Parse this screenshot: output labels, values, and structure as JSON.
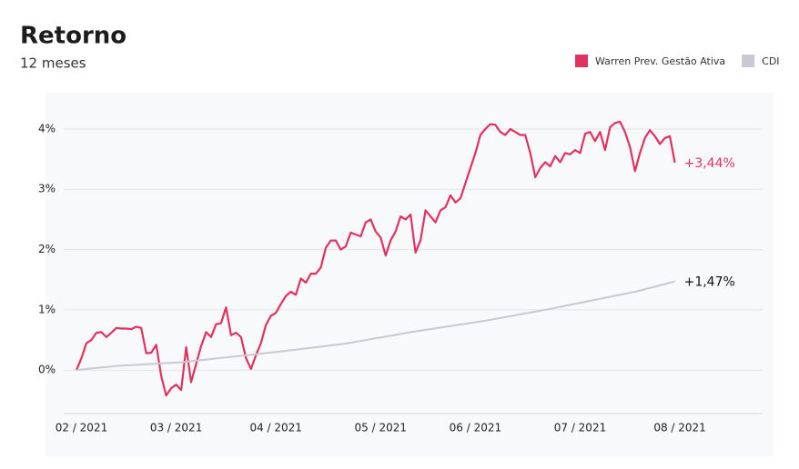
{
  "chart_data": {
    "type": "line",
    "title": "Retorno",
    "subtitle": "12 meses",
    "categories": [
      null,
      "02 / 2021",
      null,
      null,
      null,
      null,
      null,
      null,
      null,
      null,
      null,
      null,
      null,
      null,
      null,
      null,
      null,
      null,
      null,
      null,
      "03 / 2021",
      null,
      null,
      null,
      null,
      null,
      null,
      null,
      null,
      null,
      null,
      null,
      null,
      null,
      null,
      null,
      null,
      null,
      null,
      null,
      "04 / 2021",
      null,
      null,
      null,
      null,
      null,
      null,
      null,
      null,
      null,
      null,
      null,
      null,
      null,
      null,
      null,
      null,
      null,
      null,
      null,
      null,
      "05 / 2021",
      null,
      null,
      null,
      null,
      null,
      null,
      null,
      null,
      null,
      null,
      null,
      null,
      null,
      null,
      null,
      null,
      null,
      null,
      "06 / 2021",
      null,
      null,
      null,
      null,
      null,
      null,
      null,
      null,
      null,
      null,
      null,
      null,
      null,
      null,
      null,
      null,
      null,
      null,
      null,
      null,
      "07 / 2021",
      null,
      null,
      null,
      null,
      null,
      null,
      null,
      null,
      null,
      null,
      null,
      null,
      null,
      null,
      null,
      null,
      null,
      null,
      null,
      "08 / 2021"
    ],
    "series": [
      {
        "name": "Warren Prev. Gestão Ativa",
        "color": "#e0325f",
        "end_label": "+3,44%",
        "values": [
          0,
          0.2,
          0.45,
          0.5,
          0.62,
          0.63,
          0.55,
          0.62,
          0.7,
          0.69,
          0.69,
          0.68,
          0.72,
          0.7,
          0.28,
          0.29,
          0.42,
          -0.1,
          -0.42,
          -0.3,
          -0.24,
          -0.33,
          0.38,
          -0.2,
          0.1,
          0.4,
          0.63,
          0.55,
          0.76,
          0.78,
          1.04,
          0.58,
          0.62,
          0.55,
          0.2,
          0.02,
          0.25,
          0.45,
          0.75,
          0.9,
          0.95,
          1.1,
          1.23,
          1.3,
          1.25,
          1.52,
          1.45,
          1.6,
          1.6,
          1.7,
          2.03,
          2.15,
          2.15,
          2.0,
          2.05,
          2.28,
          2.25,
          2.22,
          2.45,
          2.5,
          2.3,
          2.2,
          1.9,
          2.15,
          2.3,
          2.55,
          2.5,
          2.58,
          1.95,
          2.15,
          2.65,
          2.55,
          2.45,
          2.65,
          2.7,
          2.9,
          2.78,
          2.85,
          3.1,
          3.35,
          3.6,
          3.9,
          4.0,
          4.08,
          4.07,
          3.95,
          3.9,
          4.0,
          3.95,
          3.9,
          3.9,
          3.6,
          3.2,
          3.35,
          3.45,
          3.38,
          3.55,
          3.45,
          3.6,
          3.58,
          3.65,
          3.6,
          3.92,
          3.95,
          3.8,
          3.95,
          3.65,
          4.03,
          4.1,
          4.12,
          3.95,
          3.7,
          3.3,
          3.6,
          3.85,
          3.98,
          3.88,
          3.75,
          3.85,
          3.88,
          3.44,
          null
        ]
      },
      {
        "name": "CDI",
        "color": "#c9c8d3",
        "end_label": "+1,47%",
        "values": [
          0,
          0.01,
          0.02,
          0.03,
          0.035,
          0.045,
          0.05,
          0.06,
          0.07,
          0.075,
          0.08,
          0.084,
          0.088,
          0.093,
          0.098,
          0.102,
          0.107,
          0.112,
          0.116,
          0.121,
          0.125,
          0.13,
          0.139,
          0.148,
          0.157,
          0.166,
          0.175,
          0.184,
          0.193,
          0.202,
          0.211,
          0.22,
          0.229,
          0.238,
          0.246,
          0.255,
          0.264,
          0.273,
          0.282,
          0.291,
          0.3,
          0.31,
          0.32,
          0.33,
          0.34,
          0.35,
          0.36,
          0.37,
          0.38,
          0.39,
          0.4,
          0.41,
          0.42,
          0.43,
          0.44,
          0.455,
          0.469,
          0.484,
          0.498,
          0.513,
          0.528,
          0.542,
          0.557,
          0.572,
          0.586,
          0.601,
          0.615,
          0.63,
          0.643,
          0.655,
          0.668,
          0.681,
          0.693,
          0.706,
          0.719,
          0.731,
          0.744,
          0.757,
          0.769,
          0.782,
          0.795,
          0.807,
          0.82,
          0.835,
          0.85,
          0.865,
          0.88,
          0.895,
          0.91,
          0.925,
          0.94,
          0.955,
          0.97,
          0.985,
          1.0,
          1.017,
          1.033,
          1.05,
          1.067,
          1.083,
          1.1,
          1.117,
          1.133,
          1.15,
          1.167,
          1.183,
          1.2,
          1.217,
          1.233,
          1.25,
          1.267,
          1.283,
          1.3,
          1.321,
          1.343,
          1.364,
          1.385,
          1.406,
          1.428,
          1.449,
          1.47,
          null
        ]
      }
    ],
    "ylim": [
      -0.72,
      4.33
    ],
    "yticks": [
      {
        "value": 0,
        "label": "0%"
      },
      {
        "value": 1,
        "label": "1%"
      },
      {
        "value": 2,
        "label": "2%"
      },
      {
        "value": 3,
        "label": "3%"
      },
      {
        "value": 4,
        "label": "4%"
      }
    ],
    "grid": true
  }
}
